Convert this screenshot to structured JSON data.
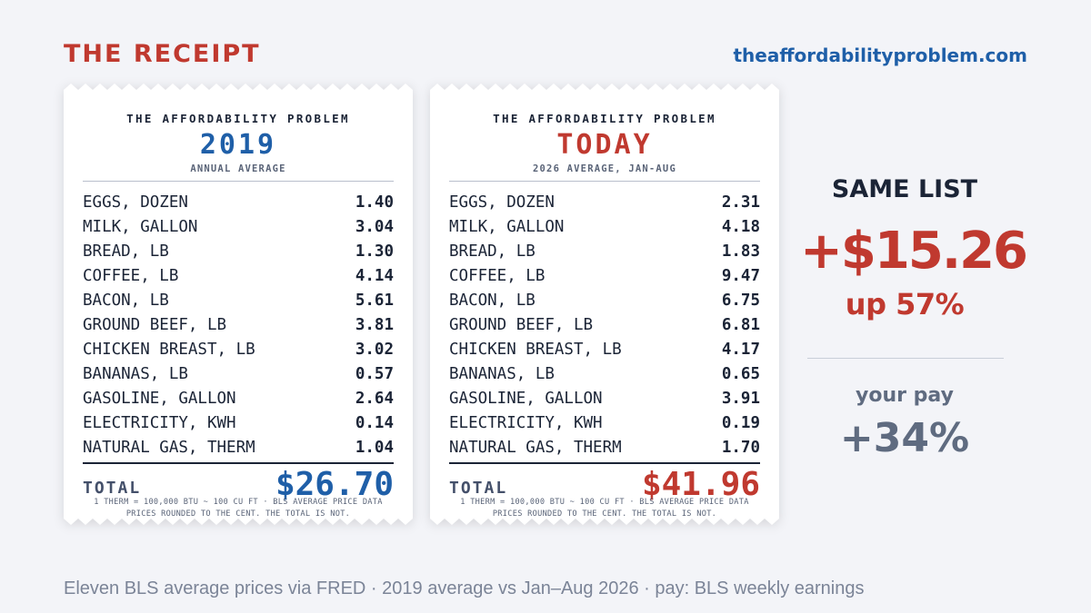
{
  "header": {
    "title": "THE RECEIPT",
    "site": "theaffordabilityproblem.com"
  },
  "receipts": [
    {
      "store": "THE AFFORDABILITY PROBLEM",
      "period": "2019",
      "subtitle": "ANNUAL AVERAGE",
      "items": [
        {
          "name": "EGGS, DOZEN",
          "price": "1.40"
        },
        {
          "name": "MILK, GALLON",
          "price": "3.04"
        },
        {
          "name": "BREAD, LB",
          "price": "1.30"
        },
        {
          "name": "COFFEE, LB",
          "price": "4.14"
        },
        {
          "name": "BACON, LB",
          "price": "5.61"
        },
        {
          "name": "GROUND BEEF, LB",
          "price": "3.81"
        },
        {
          "name": "CHICKEN BREAST, LB",
          "price": "3.02"
        },
        {
          "name": "BANANAS, LB",
          "price": "0.57"
        },
        {
          "name": "GASOLINE, GALLON",
          "price": "2.64"
        },
        {
          "name": "ELECTRICITY, KWH",
          "price": "0.14"
        },
        {
          "name": "NATURAL GAS, THERM",
          "price": "1.04"
        }
      ],
      "total_label": "TOTAL",
      "total": "$26.70",
      "footnote_1": "1 THERM = 100,000 BTU ~ 100 CU FT · BLS AVERAGE PRICE DATA",
      "footnote_2": "PRICES ROUNDED TO THE CENT. THE TOTAL IS NOT."
    },
    {
      "store": "THE AFFORDABILITY PROBLEM",
      "period": "TODAY",
      "subtitle": "2026 AVERAGE, JAN-AUG",
      "items": [
        {
          "name": "EGGS, DOZEN",
          "price": "2.31"
        },
        {
          "name": "MILK, GALLON",
          "price": "4.18"
        },
        {
          "name": "BREAD, LB",
          "price": "1.83"
        },
        {
          "name": "COFFEE, LB",
          "price": "9.47"
        },
        {
          "name": "BACON, LB",
          "price": "6.75"
        },
        {
          "name": "GROUND BEEF, LB",
          "price": "6.81"
        },
        {
          "name": "CHICKEN BREAST, LB",
          "price": "4.17"
        },
        {
          "name": "BANANAS, LB",
          "price": "0.65"
        },
        {
          "name": "GASOLINE, GALLON",
          "price": "3.91"
        },
        {
          "name": "ELECTRICITY, KWH",
          "price": "0.19"
        },
        {
          "name": "NATURAL GAS, THERM",
          "price": "1.70"
        }
      ],
      "total_label": "TOTAL",
      "total": "$41.96",
      "footnote_1": "1 THERM = 100,000 BTU ~ 100 CU FT · BLS AVERAGE PRICE DATA",
      "footnote_2": "PRICES ROUNDED TO THE CENT. THE TOTAL IS NOT."
    }
  ],
  "summary": {
    "headline": "SAME LIST",
    "delta": "+$15.26",
    "percent": "up 57%",
    "pay_label": "your pay",
    "pay_value": "+34%"
  },
  "footer": "Eleven BLS average prices via FRED · 2019 average vs Jan–Aug 2026 · pay: BLS weekly earnings",
  "colors": {
    "accent_red": "#c0392f",
    "accent_blue": "#1f5fa8",
    "muted": "#5f6b80",
    "background": "#f3f4f8"
  }
}
